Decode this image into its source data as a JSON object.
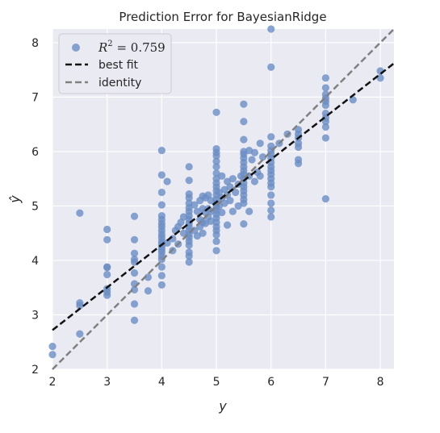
{
  "chart_data": {
    "type": "scatter",
    "title": "Prediction Error for BayesianRidge",
    "xlabel": "y",
    "ylabel": "ŷ",
    "xlim": [
      2,
      8.25
    ],
    "ylim": [
      2,
      8.25
    ],
    "xticks": [
      "2",
      "3",
      "4",
      "5",
      "6",
      "7",
      "8"
    ],
    "yticks": [
      "2",
      "3",
      "4",
      "5",
      "6",
      "7",
      "8"
    ],
    "grid": true,
    "legend_position": "top-left",
    "legend": {
      "points_label_prefix": "R",
      "points_label_sup": "2",
      "points_label_value": " = 0.759",
      "best_fit_label": "best fit",
      "identity_label": "identity"
    },
    "best_fit": {
      "x": [
        2,
        8.25
      ],
      "y": [
        2.72,
        7.62
      ]
    },
    "identity": {
      "x": [
        2,
        8.25
      ],
      "y": [
        2,
        8.25
      ]
    },
    "colors": {
      "background": "#eaeaf2",
      "grid": "#ffffff",
      "points": "#6a8dc4",
      "best_fit": "#111111",
      "identity": "#808080"
    },
    "points": [
      [
        2,
        2.42
      ],
      [
        2,
        2.27
      ],
      [
        2.5,
        4.87
      ],
      [
        2.5,
        3.22
      ],
      [
        2.5,
        3.17
      ],
      [
        2.5,
        2.65
      ],
      [
        3,
        4.57
      ],
      [
        3,
        4.38
      ],
      [
        3,
        3.88
      ],
      [
        3,
        3.87
      ],
      [
        3,
        3.74
      ],
      [
        3,
        3.48
      ],
      [
        3,
        3.42
      ],
      [
        3,
        3.36
      ],
      [
        3.5,
        4.81
      ],
      [
        3.5,
        4.38
      ],
      [
        3.5,
        4.13
      ],
      [
        3.5,
        4.02
      ],
      [
        3.5,
        3.97
      ],
      [
        3.5,
        3.77
      ],
      [
        3.5,
        3.57
      ],
      [
        3.5,
        3.46
      ],
      [
        3.5,
        3.2
      ],
      [
        3.5,
        2.9
      ],
      [
        3.75,
        3.69
      ],
      [
        3.75,
        3.44
      ],
      [
        4,
        6.02
      ],
      [
        4,
        5.57
      ],
      [
        4,
        5.25
      ],
      [
        4,
        5.02
      ],
      [
        4,
        4.82
      ],
      [
        4,
        4.75
      ],
      [
        4,
        4.68
      ],
      [
        4,
        4.62
      ],
      [
        4,
        4.55
      ],
      [
        4,
        4.48
      ],
      [
        4,
        4.42
      ],
      [
        4,
        4.35
      ],
      [
        4,
        4.3
      ],
      [
        4,
        4.25
      ],
      [
        4,
        4.2
      ],
      [
        4,
        4.15
      ],
      [
        4,
        4.08
      ],
      [
        4,
        4.02
      ],
      [
        4,
        3.88
      ],
      [
        4,
        3.72
      ],
      [
        4,
        3.55
      ],
      [
        4.1,
        5.45
      ],
      [
        4.1,
        4.32
      ],
      [
        4.2,
        4.18
      ],
      [
        4.2,
        4.4
      ],
      [
        4.25,
        4.55
      ],
      [
        4.3,
        4.62
      ],
      [
        4.3,
        4.3
      ],
      [
        4.35,
        4.7
      ],
      [
        4.4,
        4.5
      ],
      [
        4.4,
        4.8
      ],
      [
        4.5,
        5.72
      ],
      [
        4.5,
        5.47
      ],
      [
        4.5,
        5.22
      ],
      [
        4.5,
        5.15
      ],
      [
        4.5,
        5.05
      ],
      [
        4.5,
        4.97
      ],
      [
        4.5,
        4.9
      ],
      [
        4.5,
        4.82
      ],
      [
        4.5,
        4.75
      ],
      [
        4.5,
        4.68
      ],
      [
        4.5,
        4.62
      ],
      [
        4.5,
        4.55
      ],
      [
        4.5,
        4.48
      ],
      [
        4.5,
        4.42
      ],
      [
        4.5,
        4.35
      ],
      [
        4.5,
        4.28
      ],
      [
        4.5,
        4.15
      ],
      [
        4.5,
        4.08
      ],
      [
        4.5,
        3.97
      ],
      [
        4.6,
        5.02
      ],
      [
        4.6,
        4.55
      ],
      [
        4.65,
        4.9
      ],
      [
        4.65,
        4.45
      ],
      [
        4.7,
        5.1
      ],
      [
        4.7,
        4.75
      ],
      [
        4.7,
        4.62
      ],
      [
        4.75,
        5.18
      ],
      [
        4.75,
        4.95
      ],
      [
        4.75,
        4.7
      ],
      [
        4.75,
        4.5
      ],
      [
        4.8,
        5.15
      ],
      [
        4.8,
        4.88
      ],
      [
        4.8,
        4.68
      ],
      [
        4.85,
        5.2
      ],
      [
        4.85,
        4.95
      ],
      [
        4.85,
        4.8
      ],
      [
        4.9,
        5.1
      ],
      [
        4.9,
        4.9
      ],
      [
        4.9,
        4.72
      ],
      [
        5,
        6.72
      ],
      [
        5,
        6.05
      ],
      [
        5,
        5.98
      ],
      [
        5,
        5.92
      ],
      [
        5,
        5.82
      ],
      [
        5,
        5.72
      ],
      [
        5,
        5.6
      ],
      [
        5,
        5.5
      ],
      [
        5,
        5.42
      ],
      [
        5,
        5.35
      ],
      [
        5,
        5.28
      ],
      [
        5,
        5.2
      ],
      [
        5,
        5.12
      ],
      [
        5,
        5.05
      ],
      [
        5,
        4.98
      ],
      [
        5,
        4.92
      ],
      [
        5,
        4.85
      ],
      [
        5,
        4.78
      ],
      [
        5,
        4.7
      ],
      [
        5,
        4.62
      ],
      [
        5,
        4.55
      ],
      [
        5,
        4.47
      ],
      [
        5,
        4.35
      ],
      [
        5,
        4.18
      ],
      [
        5.05,
        5.25
      ],
      [
        5.05,
        5.0
      ],
      [
        5.1,
        5.55
      ],
      [
        5.1,
        5.15
      ],
      [
        5.1,
        4.88
      ],
      [
        5.15,
        5.3
      ],
      [
        5.15,
        5.05
      ],
      [
        5.2,
        5.45
      ],
      [
        5.2,
        5.2
      ],
      [
        5.2,
        4.65
      ],
      [
        5.25,
        5.35
      ],
      [
        5.25,
        5.1
      ],
      [
        5.3,
        5.5
      ],
      [
        5.3,
        4.9
      ],
      [
        5.35,
        5.25
      ],
      [
        5.4,
        5.4
      ],
      [
        5.4,
        5.0
      ],
      [
        5.45,
        5.55
      ],
      [
        5.5,
        6.87
      ],
      [
        5.5,
        6.55
      ],
      [
        5.5,
        6.22
      ],
      [
        5.5,
        6.0
      ],
      [
        5.5,
        5.95
      ],
      [
        5.5,
        5.88
      ],
      [
        5.5,
        5.8
      ],
      [
        5.5,
        5.72
      ],
      [
        5.5,
        5.65
      ],
      [
        5.5,
        5.58
      ],
      [
        5.5,
        5.5
      ],
      [
        5.5,
        5.42
      ],
      [
        5.5,
        5.35
      ],
      [
        5.5,
        5.28
      ],
      [
        5.5,
        5.2
      ],
      [
        5.5,
        5.12
      ],
      [
        5.5,
        5.05
      ],
      [
        5.5,
        4.67
      ],
      [
        5.6,
        6.02
      ],
      [
        5.6,
        5.55
      ],
      [
        5.6,
        4.9
      ],
      [
        5.65,
        5.85
      ],
      [
        5.7,
        5.98
      ],
      [
        5.7,
        5.45
      ],
      [
        5.75,
        5.62
      ],
      [
        5.8,
        5.55
      ],
      [
        5.8,
        6.15
      ],
      [
        5.85,
        5.9
      ],
      [
        6,
        8.25
      ],
      [
        6,
        7.55
      ],
      [
        6,
        6.27
      ],
      [
        6,
        6.1
      ],
      [
        6,
        6.02
      ],
      [
        6,
        5.95
      ],
      [
        6,
        5.88
      ],
      [
        6,
        5.8
      ],
      [
        6,
        5.72
      ],
      [
        6,
        5.65
      ],
      [
        6,
        5.58
      ],
      [
        6,
        5.5
      ],
      [
        6,
        5.42
      ],
      [
        6,
        5.35
      ],
      [
        6,
        5.2
      ],
      [
        6,
        5.05
      ],
      [
        6,
        4.92
      ],
      [
        6,
        4.8
      ],
      [
        6.15,
        6.15
      ],
      [
        6.3,
        6.32
      ],
      [
        6.5,
        6.4
      ],
      [
        6.5,
        6.32
      ],
      [
        6.5,
        6.25
      ],
      [
        6.5,
        6.15
      ],
      [
        6.5,
        6.08
      ],
      [
        6.5,
        5.85
      ],
      [
        6.5,
        5.78
      ],
      [
        7,
        7.35
      ],
      [
        7,
        7.17
      ],
      [
        7,
        7.05
      ],
      [
        7,
        6.98
      ],
      [
        7,
        6.92
      ],
      [
        7,
        6.85
      ],
      [
        7,
        6.7
      ],
      [
        7,
        6.62
      ],
      [
        7,
        6.55
      ],
      [
        7,
        6.45
      ],
      [
        7,
        6.25
      ],
      [
        7,
        5.13
      ],
      [
        7.5,
        6.95
      ],
      [
        8,
        7.48
      ],
      [
        8,
        7.35
      ]
    ]
  }
}
